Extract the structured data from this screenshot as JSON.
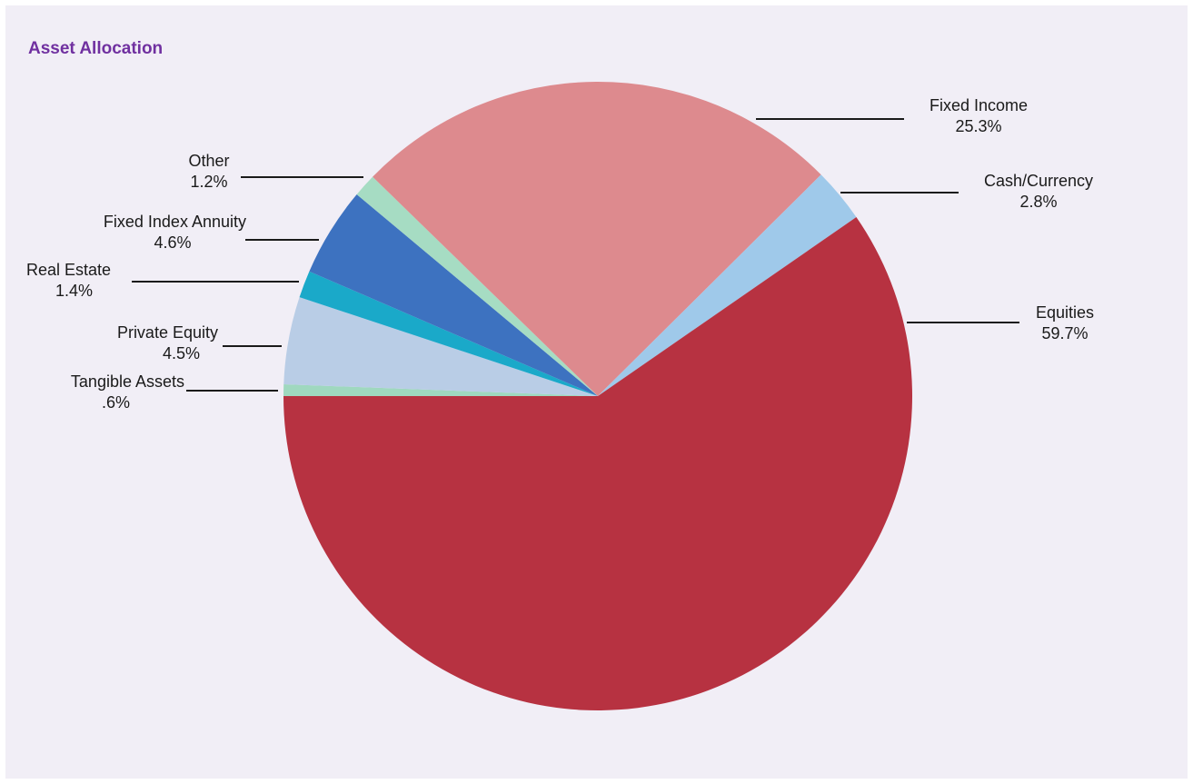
{
  "chart_data": {
    "type": "pie",
    "title": "Asset Allocation",
    "start_angle_deg": 180,
    "direction": "clockwise",
    "slices": [
      {
        "name": "Tangible Assets",
        "value": 0.6,
        "label": ".6%",
        "color": "#9fd8bf"
      },
      {
        "name": "Private Equity",
        "value": 4.5,
        "label": "4.5%",
        "color": "#b9cde6"
      },
      {
        "name": "Real Estate",
        "value": 1.4,
        "label": "1.4%",
        "color": "#1aa9c9"
      },
      {
        "name": "Fixed Index Annuity",
        "value": 4.6,
        "label": "4.6%",
        "color": "#3d72c0"
      },
      {
        "name": "Other",
        "value": 1.2,
        "label": "1.2%",
        "color": "#a6dcc3"
      },
      {
        "name": "Fixed Income",
        "value": 25.3,
        "label": "25.3%",
        "color": "#dd8a8e"
      },
      {
        "name": "Cash/Currency",
        "value": 2.8,
        "label": "2.8%",
        "color": "#9fc9ea"
      },
      {
        "name": "Equities",
        "value": 59.7,
        "label": "59.7%",
        "color": "#b73241"
      }
    ]
  },
  "colors": {
    "panel_background": "#f1eef6",
    "title": "#7030a0",
    "leader_line": "#1a1a1a"
  }
}
